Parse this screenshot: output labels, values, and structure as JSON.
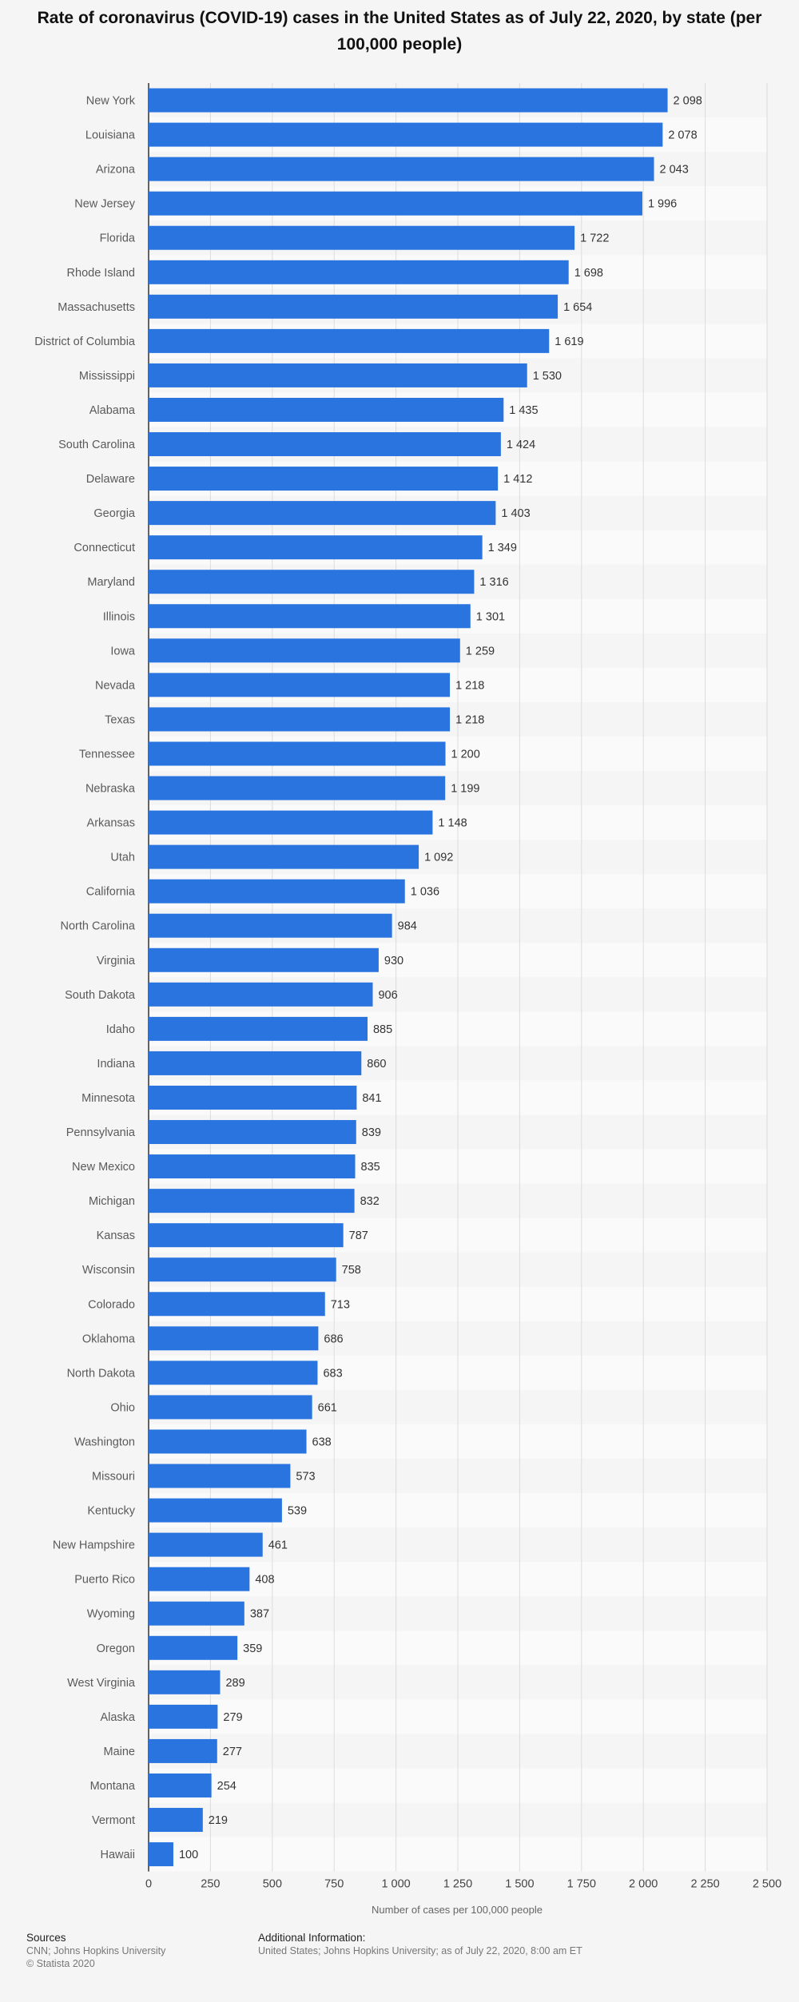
{
  "chart_data": {
    "type": "bar",
    "orientation": "horizontal",
    "title": "Rate of coronavirus (COVID-19) cases in the United States as of July 22, 2020, by state (per 100,000 people)",
    "xlabel": "Number of cases per 100,000 people",
    "ylabel": "",
    "xlim": [
      0,
      2500
    ],
    "ticks": [
      0,
      250,
      500,
      750,
      1000,
      1250,
      1500,
      1750,
      2000,
      2250,
      2500
    ],
    "tick_labels": [
      "0",
      "250",
      "500",
      "750",
      "1 000",
      "1 250",
      "1 500",
      "1 750",
      "2 000",
      "2 250",
      "2 500"
    ],
    "grid": true,
    "bar_color": "#2a74e0",
    "categories": [
      "New York",
      "Louisiana",
      "Arizona",
      "New Jersey",
      "Florida",
      "Rhode Island",
      "Massachusetts",
      "District of Columbia",
      "Mississippi",
      "Alabama",
      "South Carolina",
      "Delaware",
      "Georgia",
      "Connecticut",
      "Maryland",
      "Illinois",
      "Iowa",
      "Nevada",
      "Texas",
      "Tennessee",
      "Nebraska",
      "Arkansas",
      "Utah",
      "California",
      "North Carolina",
      "Virginia",
      "South Dakota",
      "Idaho",
      "Indiana",
      "Minnesota",
      "Pennsylvania",
      "New Mexico",
      "Michigan",
      "Kansas",
      "Wisconsin",
      "Colorado",
      "Oklahoma",
      "North Dakota",
      "Ohio",
      "Washington",
      "Missouri",
      "Kentucky",
      "New Hampshire",
      "Puerto Rico",
      "Wyoming",
      "Oregon",
      "West Virginia",
      "Alaska",
      "Maine",
      "Montana",
      "Vermont",
      "Hawaii"
    ],
    "values": [
      2098,
      2078,
      2043,
      1996,
      1722,
      1698,
      1654,
      1619,
      1530,
      1435,
      1424,
      1412,
      1403,
      1349,
      1316,
      1301,
      1259,
      1218,
      1218,
      1200,
      1199,
      1148,
      1092,
      1036,
      984,
      930,
      906,
      885,
      860,
      841,
      839,
      835,
      832,
      787,
      758,
      713,
      686,
      683,
      661,
      638,
      573,
      539,
      461,
      408,
      387,
      359,
      289,
      279,
      277,
      254,
      219,
      100
    ],
    "value_labels": [
      "2 098",
      "2 078",
      "2 043",
      "1 996",
      "1 722",
      "1 698",
      "1 654",
      "1 619",
      "1 530",
      "1 435",
      "1 424",
      "1 412",
      "1 403",
      "1 349",
      "1 316",
      "1 301",
      "1 259",
      "1 218",
      "1 218",
      "1 200",
      "1 199",
      "1 148",
      "1 092",
      "1 036",
      "984",
      "930",
      "906",
      "885",
      "860",
      "841",
      "839",
      "835",
      "832",
      "787",
      "758",
      "713",
      "686",
      "683",
      "661",
      "638",
      "573",
      "539",
      "461",
      "408",
      "387",
      "359",
      "289",
      "279",
      "277",
      "254",
      "219",
      "100"
    ]
  },
  "footer": {
    "sources_heading": "Sources",
    "sources_line1": "CNN; Johns Hopkins University",
    "sources_line2": "© Statista 2020",
    "additional_heading": "Additional Information:",
    "additional_text": "United States; Johns Hopkins University; as of July 22, 2020, 8:00 am ET"
  }
}
